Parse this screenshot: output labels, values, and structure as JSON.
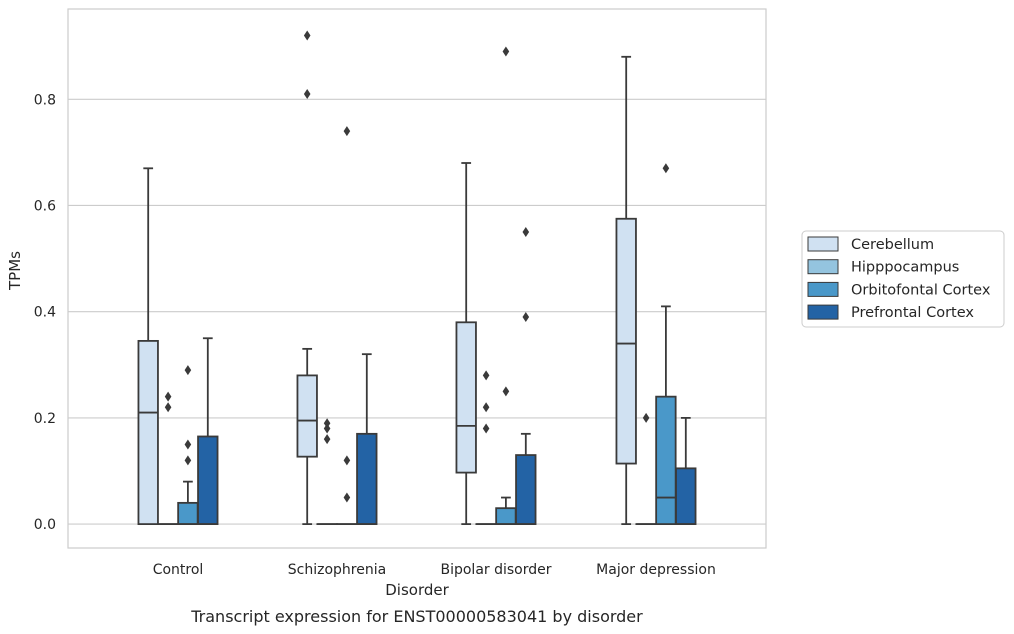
{
  "chart_data": {
    "type": "box",
    "caption": "Transcript expression for ENST00000583041 by disorder",
    "xlabel": "Disorder",
    "ylabel": "TPMs",
    "ylim": [
      -0.045,
      0.97
    ],
    "yticks": [
      0.0,
      0.2,
      0.4,
      0.6,
      0.8
    ],
    "ytick_labels": [
      "0.0",
      "0.2",
      "0.4",
      "0.6",
      "0.8"
    ],
    "grid": "horizontal",
    "legend_position": "right",
    "categories": [
      "Control",
      "Schizophrenia",
      "Bipolar disorder",
      "Major depression"
    ],
    "series": [
      {
        "name": "Cerebellum",
        "color": "#d0e1f2",
        "boxes": [
          {
            "min": 0.0,
            "q1": 0.0,
            "median": 0.21,
            "q3": 0.345,
            "max": 0.67,
            "outliers": []
          },
          {
            "min": 0.0,
            "q1": 0.127,
            "median": 0.195,
            "q3": 0.28,
            "max": 0.33,
            "outliers": [
              0.81,
              0.92
            ]
          },
          {
            "min": 0.0,
            "q1": 0.097,
            "median": 0.185,
            "q3": 0.38,
            "max": 0.68,
            "outliers": []
          },
          {
            "min": 0.0,
            "q1": 0.114,
            "median": 0.34,
            "q3": 0.575,
            "max": 0.88,
            "outliers": []
          }
        ]
      },
      {
        "name": "Hipppocampus",
        "color": "#94c4df",
        "boxes": [
          {
            "min": 0.0,
            "q1": 0.0,
            "median": 0.0,
            "q3": 0.0,
            "max": 0.0,
            "outliers": [
              0.22,
              0.24
            ]
          },
          {
            "min": 0.0,
            "q1": 0.0,
            "median": 0.0,
            "q3": 0.0,
            "max": 0.0,
            "outliers": [
              0.16,
              0.18,
              0.19
            ]
          },
          {
            "min": 0.0,
            "q1": 0.0,
            "median": 0.0,
            "q3": 0.0,
            "max": 0.0,
            "outliers": [
              0.18,
              0.22,
              0.28
            ]
          },
          {
            "min": 0.0,
            "q1": 0.0,
            "median": 0.0,
            "q3": 0.0,
            "max": 0.0,
            "outliers": [
              0.2
            ]
          }
        ]
      },
      {
        "name": "Orbitofontal Cortex",
        "color": "#4a98c9",
        "boxes": [
          {
            "min": 0.0,
            "q1": 0.0,
            "median": 0.0,
            "q3": 0.04,
            "max": 0.08,
            "outliers": [
              0.12,
              0.15,
              0.29
            ]
          },
          {
            "min": 0.0,
            "q1": 0.0,
            "median": 0.0,
            "q3": 0.0,
            "max": 0.0,
            "outliers": [
              0.05,
              0.12,
              0.74
            ]
          },
          {
            "min": 0.0,
            "q1": 0.0,
            "median": 0.0,
            "q3": 0.03,
            "max": 0.05,
            "outliers": [
              0.25,
              0.89
            ]
          },
          {
            "min": 0.0,
            "q1": 0.0,
            "median": 0.05,
            "q3": 0.24,
            "max": 0.41,
            "outliers": [
              0.67
            ]
          }
        ]
      },
      {
        "name": "Prefrontal Cortex",
        "color": "#2363a5",
        "boxes": [
          {
            "min": 0.0,
            "q1": 0.0,
            "median": 0.0,
            "q3": 0.165,
            "max": 0.35,
            "outliers": []
          },
          {
            "min": 0.0,
            "q1": 0.0,
            "median": 0.0,
            "q3": 0.17,
            "max": 0.32,
            "outliers": []
          },
          {
            "min": 0.0,
            "q1": 0.0,
            "median": 0.0,
            "q3": 0.13,
            "max": 0.17,
            "outliers": [
              0.39,
              0.55
            ]
          },
          {
            "min": 0.0,
            "q1": 0.0,
            "median": 0.0,
            "q3": 0.105,
            "max": 0.2,
            "outliers": []
          }
        ]
      }
    ]
  }
}
